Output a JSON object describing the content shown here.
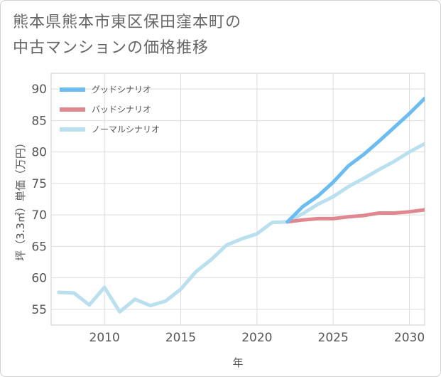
{
  "title_lines": [
    "熊本県熊本市東区保田窪本町の",
    "中古マンションの価格推移"
  ],
  "chart_data": {
    "type": "line",
    "xlabel": "年",
    "ylabel": "坪（3.3㎡）単価（万円）",
    "xlim": [
      2006.5,
      2031
    ],
    "ylim": [
      52.5,
      92.5
    ],
    "x_ticks": [
      2010,
      2015,
      2020,
      2025,
      2030
    ],
    "y_ticks": [
      55,
      60,
      65,
      70,
      75,
      80,
      85,
      90
    ],
    "grid": true,
    "legend_position": "top-left",
    "series": [
      {
        "name": "グッドシナリオ",
        "color": "#6bbcf0",
        "x": [
          2022,
          2023,
          2024,
          2025,
          2026,
          2027,
          2028,
          2029,
          2030,
          2031
        ],
        "y": [
          68.9,
          71.3,
          73.0,
          75.2,
          77.8,
          79.6,
          81.7,
          83.9,
          86.1,
          88.5
        ]
      },
      {
        "name": "バッドシナリオ",
        "color": "#e0888f",
        "x": [
          2022,
          2023,
          2024,
          2025,
          2026,
          2027,
          2028,
          2029,
          2030,
          2031
        ],
        "y": [
          68.9,
          69.2,
          69.4,
          69.4,
          69.7,
          69.9,
          70.3,
          70.3,
          70.5,
          70.8
        ]
      },
      {
        "name": "ノーマルシナリオ",
        "color": "#badfef",
        "x": [
          2007,
          2008,
          2009,
          2010,
          2011,
          2012,
          2013,
          2014,
          2015,
          2016,
          2017,
          2018,
          2019,
          2020,
          2021,
          2022,
          2023,
          2024,
          2025,
          2026,
          2027,
          2028,
          2029,
          2030,
          2031
        ],
        "y": [
          57.7,
          57.6,
          55.7,
          58.5,
          54.6,
          56.6,
          55.6,
          56.3,
          58.2,
          61.0,
          62.9,
          65.2,
          66.2,
          67.0,
          68.8,
          68.9,
          70.2,
          71.7,
          72.9,
          74.5,
          75.8,
          77.2,
          78.5,
          80.0,
          81.3
        ]
      }
    ]
  }
}
